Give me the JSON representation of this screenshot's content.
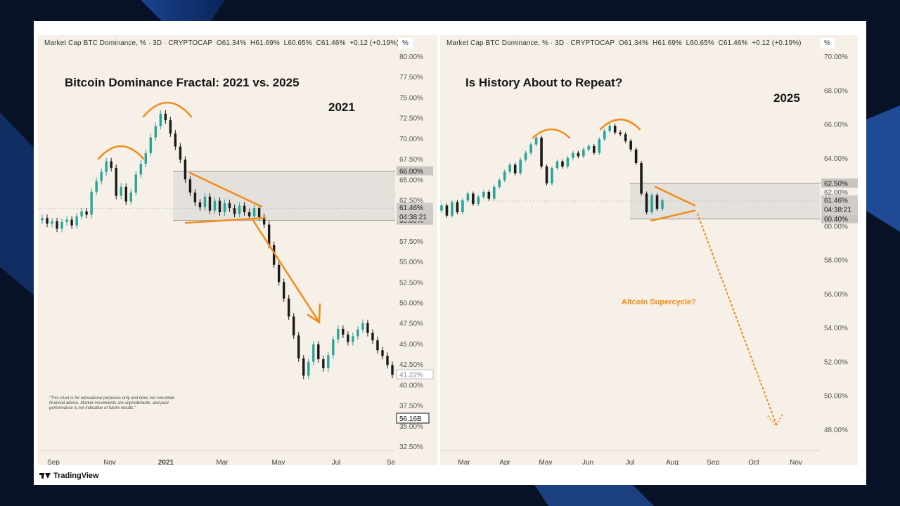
{
  "footer": {
    "brand": "TradingView",
    "logo_icon": "tradingview-logo-icon"
  },
  "colors": {
    "up": "#26a69a",
    "down": "#1a1a1a",
    "accent": "#f28c1a",
    "zone": "#d6d3cf"
  },
  "chart_data": [
    {
      "type": "candlestick",
      "header": "Market Cap BTC Dominance, % · 3D · CRYPTOCAP",
      "ohlc": {
        "o": "O61.34%",
        "h": "H61.69%",
        "l": "L60.65%",
        "c": "C61.46%",
        "chg": "+0.12 (+0.19%)"
      },
      "scale_label": "%",
      "title": "Bitcoin Dominance Fractal: 2021 vs. 2025",
      "year_label": "2021",
      "ylim": [
        32.5,
        80
      ],
      "yticks": [
        "80.00%",
        "77.50%",
        "75.00%",
        "72.50%",
        "70.00%",
        "67.50%",
        "65.00%",
        "62.50%",
        "60.00%",
        "57.50%",
        "55.00%",
        "52.50%",
        "50.00%",
        "47.50%",
        "45.00%",
        "42.50%",
        "40.00%",
        "37.50%",
        "35.00%",
        "32.50%"
      ],
      "xticks": [
        "Sep",
        "Nov",
        "2021",
        "Mar",
        "May",
        "Jul",
        "Se"
      ],
      "zone": [
        60,
        66
      ],
      "price_labels": {
        "zone_top": "66.00%",
        "zone_bottom": "60.00%",
        "last": "61.46%",
        "countdown": "04:38:21",
        "current": "41.22%",
        "volume": "56.16B"
      },
      "series": [
        {
          "x": "Sep",
          "values": [
            60.3,
            59.6,
            59.9,
            59.0,
            59.8,
            60.1,
            59.4,
            60.5,
            61.1,
            60.7
          ]
        },
        {
          "x": "Nov",
          "values": [
            63.5,
            64.8,
            65.9,
            67.2,
            66.4,
            63.0,
            64.1,
            62.3,
            63.4,
            65.6,
            66.9,
            68.2
          ]
        },
        {
          "x": "2021",
          "values": [
            70.1,
            71.5,
            73.0,
            72.2,
            70.6,
            69.0,
            67.4,
            65.0,
            63.4,
            62.2,
            61.6,
            62.9
          ]
        },
        {
          "x": "Mar",
          "values": [
            61.2,
            62.4,
            61.0,
            62.1,
            61.5,
            60.8,
            61.8,
            61.0,
            60.5,
            61.5,
            60.4,
            59.5
          ]
        },
        {
          "x": "May",
          "values": [
            57.0,
            54.6,
            52.5,
            50.5,
            48.3,
            46.0,
            43.2,
            41.1,
            42.8,
            44.9,
            43.1,
            42.0
          ]
        },
        {
          "x": "Jul",
          "values": [
            43.6,
            45.5,
            46.8,
            46.1,
            45.2,
            45.9,
            46.7,
            47.5,
            46.3,
            45.4,
            44.2,
            43.5,
            42.4,
            41.2
          ]
        }
      ]
    },
    {
      "type": "candlestick",
      "header": "Market Cap BTC Dominance, % · 3D · CRYPTOCAP",
      "ohlc": {
        "o": "O61.34%",
        "h": "H61.69%",
        "l": "L60.65%",
        "c": "C61.46%",
        "chg": "+0.12 (+0.19%)"
      },
      "scale_label": "%",
      "title": "Is History About to Repeat?",
      "year_label": "2025",
      "annotation": "Altcoin Supercycle?",
      "ylim": [
        47,
        70
      ],
      "yticks": [
        "70.00%",
        "68.00%",
        "66.00%",
        "64.00%",
        "62.00%",
        "60.00%",
        "58.00%",
        "56.00%",
        "54.00%",
        "52.00%",
        "50.00%",
        "48.00%"
      ],
      "xticks": [
        "Mar",
        "Apr",
        "May",
        "Jun",
        "Jul",
        "Aug",
        "Sep",
        "Oct",
        "Nov"
      ],
      "zone": [
        60.4,
        62.5
      ],
      "price_labels": {
        "zone_top": "62.50%",
        "zone_bottom": "60.40%",
        "last": "61.46%",
        "countdown": "04:38:21"
      },
      "series": [
        {
          "x": "Mar",
          "values": [
            61.2,
            60.6,
            61.4,
            60.8,
            61.5,
            61.9,
            61.3,
            61.7
          ]
        },
        {
          "x": "Apr",
          "values": [
            62.0,
            61.6,
            62.3,
            62.7,
            63.2,
            63.6,
            63.1,
            63.9,
            64.3,
            64.8
          ]
        },
        {
          "x": "May",
          "values": [
            65.2,
            63.5,
            62.5,
            63.4,
            63.8,
            63.5,
            64.0,
            64.3,
            64.1,
            64.5
          ]
        },
        {
          "x": "Jun",
          "values": [
            64.7,
            64.3,
            65.1,
            65.6,
            65.9,
            65.5,
            65.4,
            65.0
          ]
        },
        {
          "x": "Jul",
          "values": [
            64.5,
            63.7,
            61.9,
            60.8,
            61.8,
            61.0,
            61.5
          ]
        }
      ]
    }
  ]
}
